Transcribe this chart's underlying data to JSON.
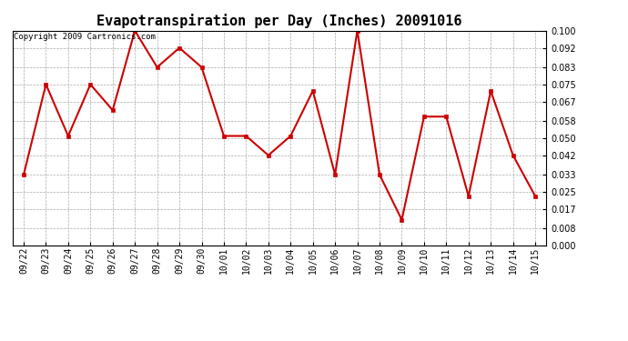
{
  "title": "Evapotranspiration per Day (Inches) 20091016",
  "copyright_text": "Copyright 2009 Cartronics.com",
  "dates": [
    "09/22",
    "09/23",
    "09/24",
    "09/25",
    "09/26",
    "09/27",
    "09/28",
    "09/29",
    "09/30",
    "10/01",
    "10/02",
    "10/03",
    "10/04",
    "10/05",
    "10/06",
    "10/07",
    "10/08",
    "10/09",
    "10/10",
    "10/11",
    "10/12",
    "10/13",
    "10/14",
    "10/15"
  ],
  "values": [
    0.033,
    0.075,
    0.051,
    0.075,
    0.063,
    0.1,
    0.083,
    0.092,
    0.083,
    0.051,
    0.051,
    0.042,
    0.051,
    0.072,
    0.033,
    0.1,
    0.033,
    0.012,
    0.06,
    0.06,
    0.023,
    0.072,
    0.042,
    0.023
  ],
  "line_color": "#cc0000",
  "marker": "s",
  "marker_size": 2.5,
  "ylim": [
    0.0,
    0.1
  ],
  "yticks": [
    0.0,
    0.008,
    0.017,
    0.025,
    0.033,
    0.042,
    0.05,
    0.058,
    0.067,
    0.075,
    0.083,
    0.092,
    0.1
  ],
  "background_color": "#ffffff",
  "grid_color": "#aaaaaa",
  "title_fontsize": 11,
  "copyright_fontsize": 6.5,
  "tick_fontsize": 7
}
